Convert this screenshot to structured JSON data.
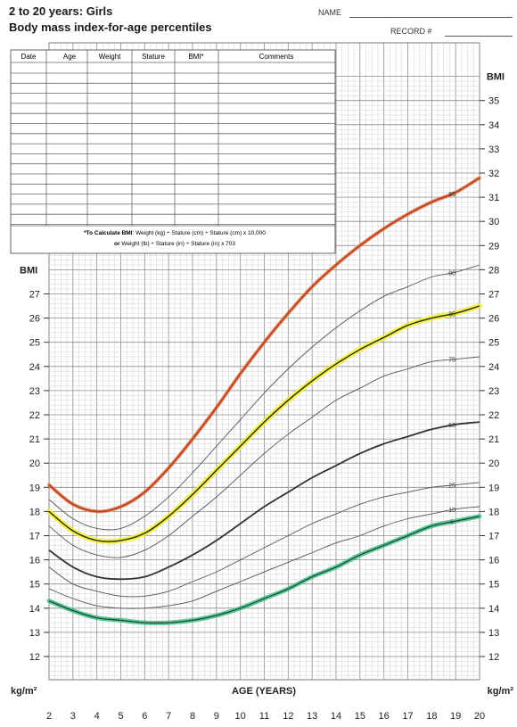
{
  "header": {
    "line1": "2 to 20 years: Girls",
    "line2": "Body mass index-for-age percentiles",
    "name_label": "NAME",
    "record_label": "RECORD #"
  },
  "record_table": {
    "columns": [
      "Date",
      "Age",
      "Weight",
      "Stature",
      "BMI*",
      "Comments"
    ]
  },
  "formula": {
    "line1_bold": "*To Calculate BMI",
    "line1_rest": ": Weight (kg) ÷ Stature (cm) ÷ Stature (cm) x 10,000",
    "line2_bold": "or",
    "line2_rest": " Weight (lb) ÷ Stature (in) ÷ Stature (in) x 703"
  },
  "colors": {
    "p95": "#b5411e",
    "p95_highlight": "#e0764a",
    "p85": "#2a2a10",
    "p85_highlight": "#f2ee3a",
    "p50": "#333333",
    "p5": "#1f4a30",
    "p5_highlight": "#3fc08a",
    "thin": "#555555",
    "grid": "#9a9a9a"
  },
  "chart_data": {
    "type": "line",
    "title": "2 to 20 years: Girls Body mass index-for-age percentiles",
    "xlabel": "AGE (YEARS)",
    "ylabel_left": "BMI",
    "ylabel_right": "BMI",
    "unit_left": "kg/m²",
    "unit_right": "kg/m²",
    "xlim": [
      2,
      20
    ],
    "ylim": [
      11,
      36
    ],
    "x_ticks": [
      2,
      3,
      4,
      5,
      6,
      7,
      8,
      9,
      10,
      11,
      12,
      13,
      14,
      15,
      16,
      17,
      18,
      19,
      20
    ],
    "y_ticks_left": [
      12,
      13,
      14,
      15,
      16,
      17,
      18,
      19,
      20,
      21,
      22,
      23,
      24,
      25,
      26,
      27
    ],
    "y_ticks_right": [
      12,
      13,
      14,
      15,
      16,
      17,
      18,
      19,
      20,
      21,
      22,
      23,
      24,
      25,
      26,
      27,
      28,
      29,
      30,
      31,
      32,
      33,
      34,
      35
    ],
    "grid": true,
    "x": [
      2,
      3,
      4,
      5,
      6,
      7,
      8,
      9,
      10,
      11,
      12,
      13,
      14,
      15,
      16,
      17,
      18,
      19,
      20
    ],
    "series": [
      {
        "name": "95",
        "values": [
          19.1,
          18.3,
          18.0,
          18.2,
          18.8,
          19.8,
          21.0,
          22.3,
          23.7,
          25.0,
          26.2,
          27.3,
          28.2,
          29.0,
          29.7,
          30.3,
          30.8,
          31.2,
          31.8
        ]
      },
      {
        "name": "90",
        "values": [
          18.5,
          17.7,
          17.3,
          17.3,
          17.8,
          18.6,
          19.6,
          20.7,
          21.8,
          22.9,
          23.9,
          24.8,
          25.6,
          26.3,
          26.9,
          27.3,
          27.7,
          27.9,
          28.2
        ]
      },
      {
        "name": "85",
        "values": [
          18.0,
          17.2,
          16.8,
          16.8,
          17.1,
          17.8,
          18.7,
          19.7,
          20.7,
          21.7,
          22.6,
          23.4,
          24.1,
          24.7,
          25.2,
          25.7,
          26.0,
          26.2,
          26.5
        ]
      },
      {
        "name": "75",
        "values": [
          17.4,
          16.6,
          16.2,
          16.1,
          16.4,
          17.0,
          17.8,
          18.6,
          19.5,
          20.4,
          21.2,
          21.9,
          22.6,
          23.1,
          23.6,
          23.9,
          24.2,
          24.3,
          24.4
        ]
      },
      {
        "name": "50",
        "values": [
          16.4,
          15.7,
          15.3,
          15.2,
          15.3,
          15.7,
          16.2,
          16.8,
          17.5,
          18.2,
          18.8,
          19.4,
          19.9,
          20.4,
          20.8,
          21.1,
          21.4,
          21.6,
          21.7
        ]
      },
      {
        "name": "25",
        "values": [
          15.7,
          15.0,
          14.7,
          14.5,
          14.5,
          14.7,
          15.1,
          15.5,
          16.0,
          16.5,
          17.0,
          17.5,
          17.9,
          18.3,
          18.6,
          18.8,
          19.0,
          19.1,
          19.2
        ]
      },
      {
        "name": "10",
        "values": [
          14.8,
          14.4,
          14.1,
          14.0,
          14.0,
          14.1,
          14.3,
          14.7,
          15.1,
          15.5,
          15.9,
          16.3,
          16.7,
          17.0,
          17.4,
          17.7,
          17.9,
          18.1,
          18.2
        ]
      },
      {
        "name": "5",
        "values": [
          14.3,
          13.9,
          13.6,
          13.5,
          13.4,
          13.4,
          13.5,
          13.7,
          14.0,
          14.4,
          14.8,
          15.3,
          15.7,
          16.2,
          16.6,
          17.0,
          17.4,
          17.6,
          17.8
        ]
      }
    ]
  }
}
